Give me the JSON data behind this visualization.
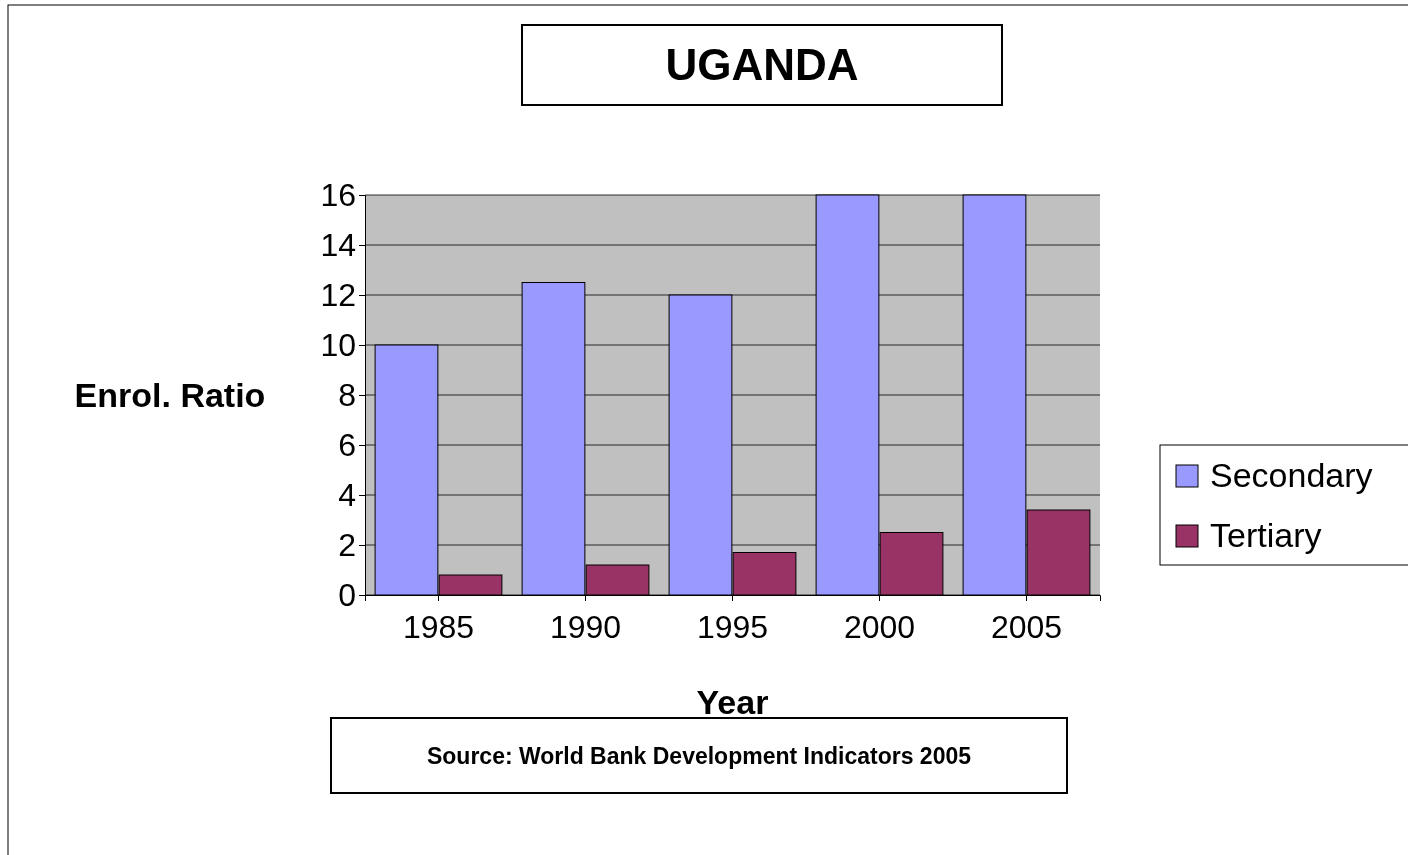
{
  "chart_data": {
    "type": "bar",
    "title": "UGANDA",
    "xlabel": "Year",
    "ylabel": "Enrol. Ratio",
    "categories": [
      "1985",
      "1990",
      "1995",
      "2000",
      "2005"
    ],
    "series": [
      {
        "name": "Secondary",
        "color": "#9999ff",
        "values": [
          10,
          12.5,
          12,
          16,
          16
        ]
      },
      {
        "name": "Tertiary",
        "color": "#993366",
        "values": [
          0.8,
          1.2,
          1.7,
          2.5,
          3.4
        ]
      }
    ],
    "ylim": [
      0,
      16
    ],
    "yticks": [
      0,
      2,
      4,
      6,
      8,
      10,
      12,
      14,
      16
    ],
    "grid": "y",
    "legend": "right",
    "annotations": [
      "Source: World Bank Development Indicators 2005"
    ]
  }
}
